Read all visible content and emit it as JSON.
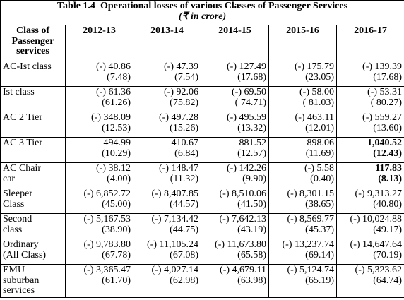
{
  "header": {
    "label": "Table 1.4",
    "title": "Operational losses of various Classes of Passenger Services",
    "subtitle": "(₹ in crore)"
  },
  "table": {
    "columns": [
      "Class of Passenger services",
      "2012-13",
      "2013-14",
      "2014-15",
      "2015-16",
      "2016-17"
    ],
    "rows": [
      {
        "label": "AC-Ist class",
        "cells": [
          {
            "value": "(-) 40.86",
            "share": "(7.48)"
          },
          {
            "value": "(-) 47.39",
            "share": "(7.54)"
          },
          {
            "value": "(-) 127.49",
            "share": "(17.68)"
          },
          {
            "value": "(-) 175.79",
            "share": "(23.05)"
          },
          {
            "value": "(-) 139.39",
            "share": "(17.68)"
          }
        ]
      },
      {
        "label": "Ist class",
        "cells": [
          {
            "value": "(-) 61.36",
            "share": "(61.26)"
          },
          {
            "value": "(-) 92.06",
            "share": "(75.82)"
          },
          {
            "value": "(-) 69.50",
            "share": "( 74.71)"
          },
          {
            "value": "(-) 58.00",
            "share": "( 81.03)"
          },
          {
            "value": "(-) 53.31",
            "share": "( 80.27)"
          }
        ]
      },
      {
        "label": "AC 2 Tier",
        "cells": [
          {
            "value": "(-) 348.09",
            "share": "(12.53)"
          },
          {
            "value": "(-) 497.28",
            "share": "(15.26)"
          },
          {
            "value": "(-) 495.59",
            "share": "(13.32)"
          },
          {
            "value": "(-) 463.11",
            "share": "(12.01)"
          },
          {
            "value": "(-) 559.27",
            "share": "(13.60)"
          }
        ]
      },
      {
        "label": "AC 3 Tier",
        "cells": [
          {
            "value": "494.99",
            "share": "(10.29)"
          },
          {
            "value": "410.67",
            "share": "(6.84)"
          },
          {
            "value": "881.52",
            "share": "(12.57)"
          },
          {
            "value": "898.06",
            "share": "(11.69)"
          },
          {
            "value": "1,040.52",
            "share": "(12.43)",
            "bold": true
          }
        ]
      },
      {
        "label": "AC Chair car",
        "cells": [
          {
            "value": "(-) 38.12",
            "share": "(4.00)"
          },
          {
            "value": "(-) 148.47",
            "share": "(11.32)"
          },
          {
            "value": "(-) 142.26",
            "share": "(9.90)"
          },
          {
            "value": "(-) 5.58",
            "share": "(0.40)"
          },
          {
            "value": "117.83",
            "share": "(8.13)",
            "bold": true
          }
        ]
      },
      {
        "label": "Sleeper Class",
        "cells": [
          {
            "value": "(-) 6,852.72",
            "share": "(45.00)"
          },
          {
            "value": "(-) 8,407.85",
            "share": "(44.57)"
          },
          {
            "value": "(-) 8,510.06",
            "share": "(41.50)"
          },
          {
            "value": "(-) 8,301.15",
            "share": "(38.65)"
          },
          {
            "value": "(-) 9,313.27",
            "share": "(40.80)"
          }
        ]
      },
      {
        "label": "Second class",
        "cells": [
          {
            "value": "(-) 5,167.53",
            "share": "(38.90)"
          },
          {
            "value": "(-) 7,134.42",
            "share": "(44.75)"
          },
          {
            "value": "(-) 7,642.13",
            "share": "(43.19)"
          },
          {
            "value": "(-) 8,569.77",
            "share": "(45.37)"
          },
          {
            "value": "(-) 10,024.88",
            "share": "(49.17)"
          }
        ]
      },
      {
        "label": "Ordinary (All Class)",
        "cells": [
          {
            "value": "(-) 9,783.80",
            "share": "(67.78)"
          },
          {
            "value": "(-) 11,105.24",
            "share": "(67.08)"
          },
          {
            "value": "(-) 11,673.80",
            "share": "(65.58)"
          },
          {
            "value": "(-) 13,237.74",
            "share": "(69.14)"
          },
          {
            "value": "(-) 14,647.64",
            "share": "(70.19)"
          }
        ]
      },
      {
        "label": "EMU suburban services",
        "cells": [
          {
            "value": "(-) 3,365.47",
            "share": "(61.70)"
          },
          {
            "value": "(-) 4,027.14",
            "share": "(62.98)"
          },
          {
            "value": "(-) 4,679.11",
            "share": "(63.98)"
          },
          {
            "value": "(-) 5,124.74",
            "share": "(65.19)"
          },
          {
            "value": "(-) 5,323.62",
            "share": "(64.74)"
          }
        ]
      }
    ]
  }
}
